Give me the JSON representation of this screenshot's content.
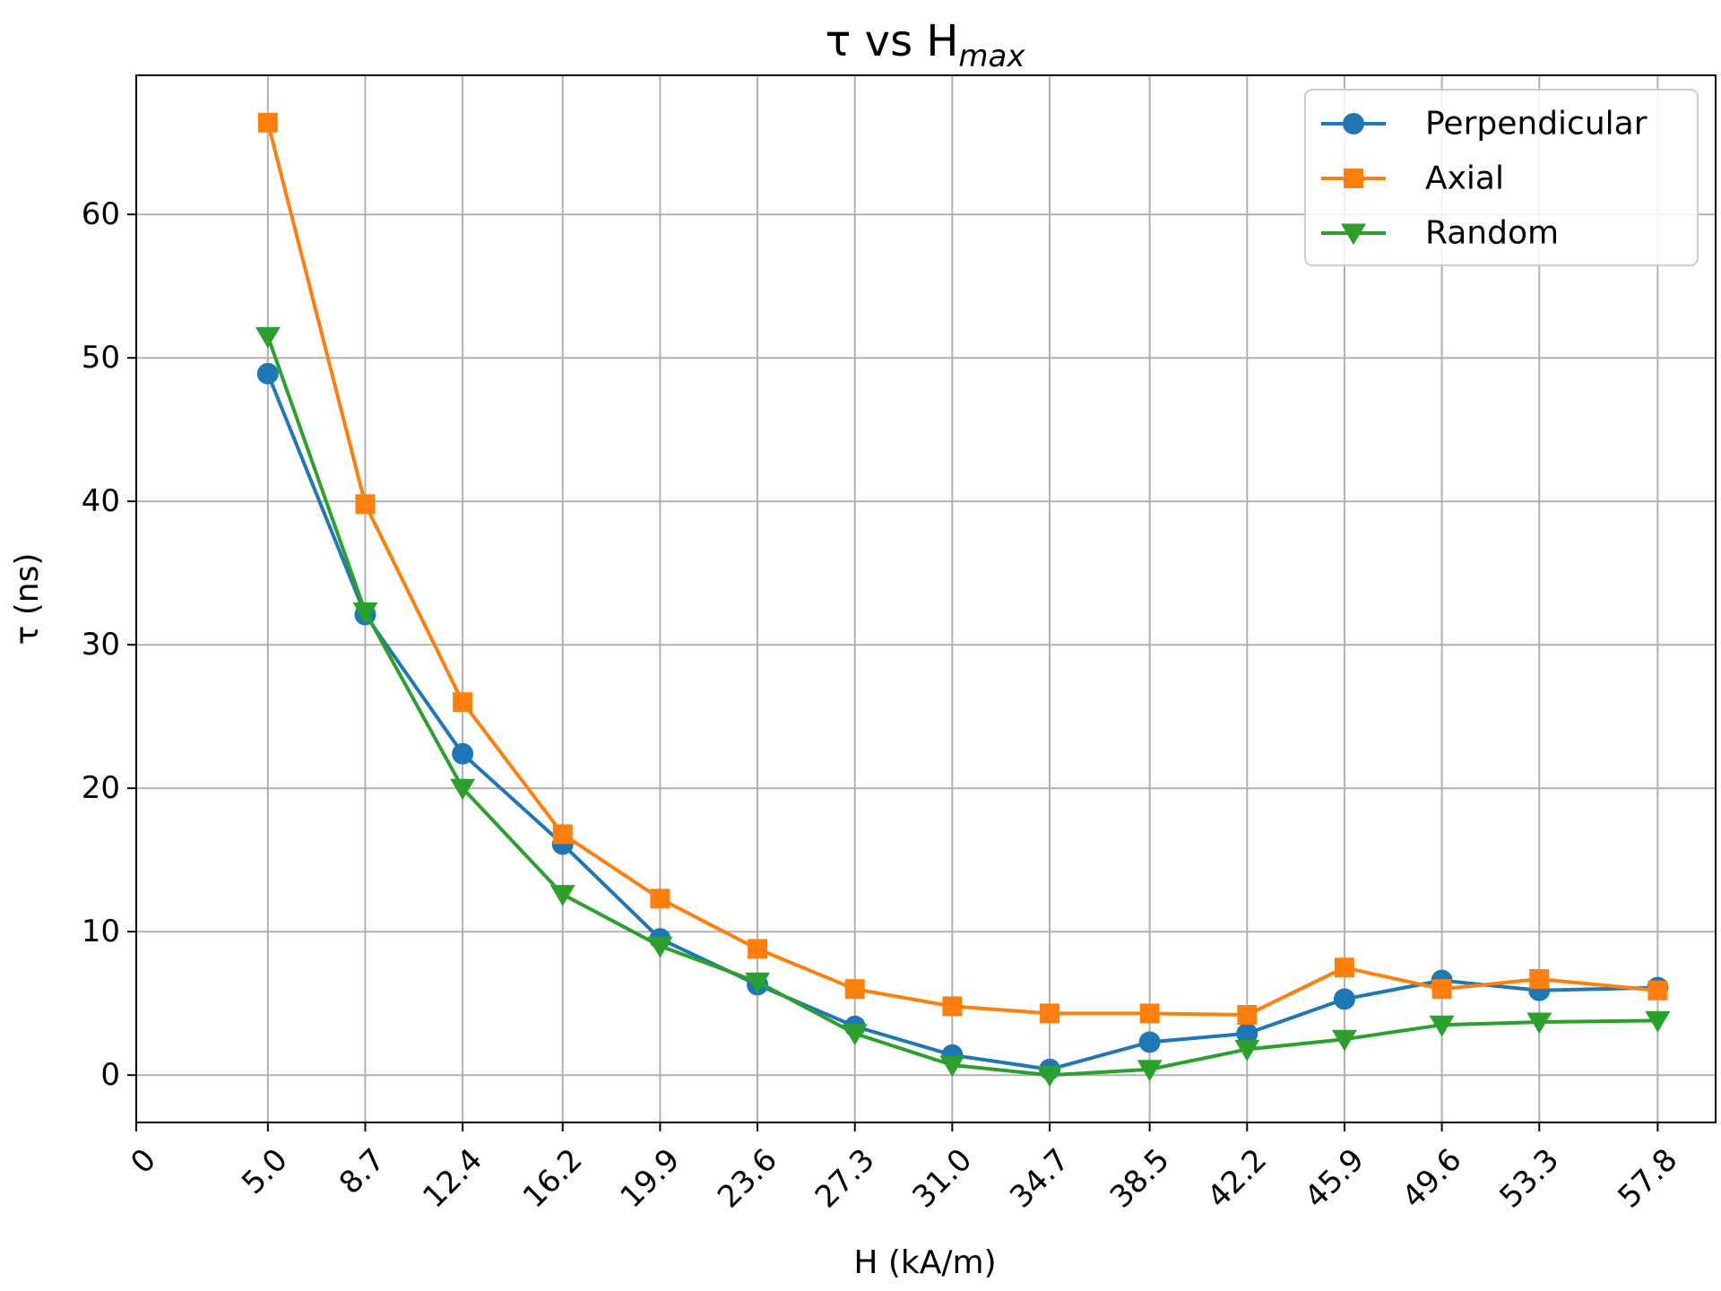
{
  "chart_data": {
    "type": "line",
    "title": "τ vs H",
    "title_subscript": "max",
    "xlabel": "H (kA/m)",
    "ylabel": "τ (ns)",
    "xlim": [
      0,
      60
    ],
    "ylim": [
      -3.3,
      69.7
    ],
    "grid": true,
    "legend_position": "top-right",
    "x": [
      5.0,
      8.7,
      12.4,
      16.2,
      19.9,
      23.6,
      27.3,
      31.0,
      34.7,
      38.5,
      42.2,
      45.9,
      49.6,
      53.3,
      57.8
    ],
    "x_tick_labels": [
      "0",
      "5.0",
      "8.7",
      "12.4",
      "16.2",
      "19.9",
      "23.6",
      "27.3",
      "31.0",
      "34.7",
      "38.5",
      "42.2",
      "45.9",
      "49.6",
      "53.3",
      "57.8"
    ],
    "x_tick_values": [
      0,
      5.0,
      8.7,
      12.4,
      16.2,
      19.9,
      23.6,
      27.3,
      31.0,
      34.7,
      38.5,
      42.2,
      45.9,
      49.6,
      53.3,
      57.8
    ],
    "y_ticks": [
      0,
      10,
      20,
      30,
      40,
      50,
      60
    ],
    "series": [
      {
        "name": "Perpendicular",
        "color": "#1f77b4",
        "marker": "circle",
        "values": [
          48.9,
          32.1,
          22.4,
          16.1,
          9.5,
          6.3,
          3.4,
          1.4,
          0.4,
          2.3,
          2.9,
          5.3,
          6.6,
          5.9,
          6.1
        ]
      },
      {
        "name": "Axial",
        "color": "#ff7f0e",
        "marker": "square",
        "values": [
          66.4,
          39.8,
          26.0,
          16.8,
          12.3,
          8.8,
          6.0,
          4.8,
          4.3,
          4.3,
          4.2,
          7.5,
          6.0,
          6.7,
          5.9
        ]
      },
      {
        "name": "Random",
        "color": "#2ca02c",
        "marker": "triangle-down",
        "values": [
          51.5,
          32.3,
          20.0,
          12.6,
          9.0,
          6.5,
          2.9,
          0.7,
          0.0,
          0.4,
          1.8,
          2.5,
          3.5,
          3.7,
          3.8
        ]
      }
    ]
  }
}
